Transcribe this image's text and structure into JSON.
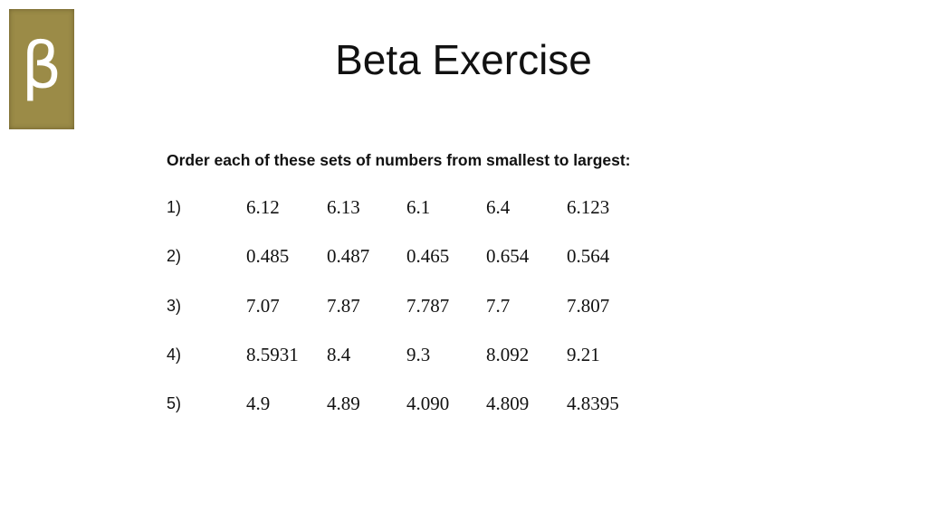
{
  "logo": {
    "symbol": "β"
  },
  "header": {
    "title": "Beta Exercise"
  },
  "instruction": "Order each of these sets of numbers from smallest to largest:",
  "rows": [
    {
      "label": "1)",
      "numbers": [
        "6.12",
        "6.13",
        "6.1",
        "6.4",
        "6.123"
      ]
    },
    {
      "label": "2)",
      "numbers": [
        "0.485",
        "0.487",
        "0.465",
        "0.654",
        "0.564"
      ]
    },
    {
      "label": "3)",
      "numbers": [
        "7.07",
        "7.87",
        "7.787",
        "7.7",
        "7.807"
      ]
    },
    {
      "label": "4)",
      "numbers": [
        "8.5931",
        "8.4",
        "9.3",
        "8.092",
        "9.21"
      ]
    },
    {
      "label": "5)",
      "numbers": [
        "4.9",
        "4.89",
        "4.090",
        "4.809",
        "4.8395"
      ]
    }
  ]
}
